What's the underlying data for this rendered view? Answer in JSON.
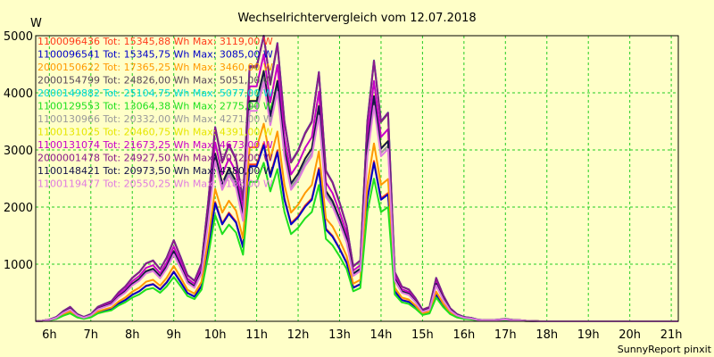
{
  "chart_data": {
    "type": "line",
    "title": "Wechselrichtervergleich vom 12.07.2018",
    "ylabel": "W",
    "credit": "SunnyReport pinxit",
    "xlim": [
      5.67,
      21.17
    ],
    "ylim": [
      0,
      5000
    ],
    "yticks": [
      1000,
      2000,
      3000,
      4000,
      5000
    ],
    "xticks": [
      {
        "t": 6,
        "label": "6h"
      },
      {
        "t": 7,
        "label": "7h"
      },
      {
        "t": 8,
        "label": "8h"
      },
      {
        "t": 9,
        "label": "9h"
      },
      {
        "t": 10,
        "label": "10h"
      },
      {
        "t": 11,
        "label": "11h"
      },
      {
        "t": 12,
        "label": "12h"
      },
      {
        "t": 13,
        "label": "13h"
      },
      {
        "t": 14,
        "label": "14h"
      },
      {
        "t": 15,
        "label": "15h"
      },
      {
        "t": 16,
        "label": "16h"
      },
      {
        "t": 17,
        "label": "17h"
      },
      {
        "t": 18,
        "label": "18h"
      },
      {
        "t": 19,
        "label": "19h"
      },
      {
        "t": 20,
        "label": "20h"
      },
      {
        "t": 21,
        "label": "21h"
      }
    ],
    "grid": true,
    "x": [
      5.67,
      5.83,
      6.0,
      6.17,
      6.33,
      6.5,
      6.67,
      6.83,
      7.0,
      7.17,
      7.33,
      7.5,
      7.67,
      7.83,
      8.0,
      8.17,
      8.33,
      8.5,
      8.67,
      8.83,
      9.0,
      9.17,
      9.33,
      9.5,
      9.67,
      9.83,
      10.0,
      10.17,
      10.33,
      10.5,
      10.67,
      10.83,
      11.0,
      11.17,
      11.33,
      11.5,
      11.67,
      11.83,
      12.0,
      12.17,
      12.33,
      12.5,
      12.67,
      12.83,
      13.0,
      13.17,
      13.33,
      13.5,
      13.67,
      13.83,
      14.0,
      14.17,
      14.33,
      14.5,
      14.67,
      14.83,
      15.0,
      15.17,
      15.33,
      15.5,
      15.67,
      15.83,
      16.0,
      16.17,
      16.33,
      16.5,
      16.67,
      16.83,
      17.0,
      17.17,
      17.33,
      17.5,
      17.67,
      17.83,
      18.0,
      18.17,
      18.33,
      18.5,
      18.67,
      18.83,
      19.0,
      19.17,
      19.33,
      19.5,
      19.67,
      19.83,
      20.0,
      20.17,
      20.33,
      20.5,
      20.67,
      20.83,
      21.0,
      21.17
    ],
    "base_profile": [
      0,
      0.002,
      0.006,
      0.015,
      0.035,
      0.05,
      0.025,
      0.015,
      0.025,
      0.05,
      0.06,
      0.07,
      0.1,
      0.12,
      0.15,
      0.17,
      0.2,
      0.21,
      0.18,
      0.22,
      0.28,
      0.22,
      0.16,
      0.14,
      0.2,
      0.41,
      0.67,
      0.55,
      0.61,
      0.56,
      0.42,
      0.88,
      0.88,
      1.0,
      0.82,
      0.96,
      0.69,
      0.55,
      0.59,
      0.65,
      0.69,
      0.86,
      0.52,
      0.48,
      0.41,
      0.33,
      0.19,
      0.21,
      0.69,
      0.9,
      0.69,
      0.72,
      0.17,
      0.12,
      0.11,
      0.08,
      0.04,
      0.05,
      0.15,
      0.09,
      0.045,
      0.025,
      0.015,
      0.012,
      0.006,
      0.004,
      0.004,
      0.006,
      0.008,
      0.005,
      0.004,
      0.002,
      0.001,
      0,
      0,
      0,
      0,
      0,
      0,
      0,
      0,
      0,
      0,
      0
    ],
    "series": [
      {
        "name": "1100096436",
        "legend": "1100096436 Tot: 15345,88 Wh Max: 3119,00 W",
        "color": "#ff3a1c",
        "max": 3119
      },
      {
        "name": "1100096541",
        "legend": "1100096541 Tot: 15345,75 Wh Max: 3085,00 W",
        "color": "#0000c8",
        "max": 3085
      },
      {
        "name": "2000150622",
        "legend": "2000150622 Tot: 17365,25 Wh Max: 3460,00 W",
        "color": "#ff9900",
        "max": 3460
      },
      {
        "name": "2000154799",
        "legend": "2000154799 Tot: 24826,00 Wh Max: 5051,00 W",
        "color": "#5a4a5a",
        "max": 5051
      },
      {
        "name": "2000149882",
        "legend": "2000149882 Tot: 25104,75 Wh Max: 5077,00 W",
        "color": "#00d8d8",
        "max": 5077
      },
      {
        "name": "1100129553",
        "legend": "1100129553 Tot: 13064,38 Wh Max: 2775,00 W",
        "color": "#1ee01e",
        "max": 2775
      },
      {
        "name": "1100130966",
        "legend": "1100130966 Tot: 20332,00 Wh Max: 4271,00 W",
        "color": "#9a9a9a",
        "max": 4271
      },
      {
        "name": "1100131025",
        "legend": "1100131025 Tot: 20460,75 Wh Max: 4391,00 W",
        "color": "#e6e600",
        "max": 4391
      },
      {
        "name": "1100131074",
        "legend": "1100131074 Tot: 21673,25 Wh Max: 4673,00 W",
        "color": "#c800c8",
        "max": 4673
      },
      {
        "name": "2000001478",
        "legend": "2000001478 Tot: 24927,50 Wh Max: 5072,00 W",
        "color": "#8a1a8a",
        "max": 5072
      },
      {
        "name": "1100148421",
        "legend": "1100148421 Tot: 20973,50 Wh Max: 4380,00 W",
        "color": "#14144a",
        "max": 4380
      },
      {
        "name": "1100119477",
        "legend": "1100119477 Tot: 20550,25 Wh Max: 4186,00 W",
        "color": "#e07ae0",
        "max": 4186
      }
    ]
  }
}
